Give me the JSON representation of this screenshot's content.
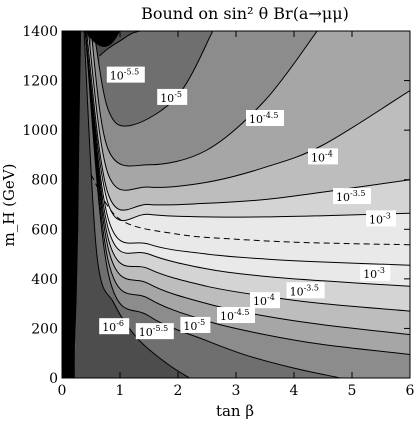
{
  "chart_data": {
    "type": "contour",
    "title": "Bound on sin² θ Br(a→μμ)",
    "xlabel": "tan β",
    "ylabel": "m_H (GeV)",
    "xlim": [
      0,
      6
    ],
    "ylim": [
      0,
      1400
    ],
    "x_ticks": [
      "0",
      "1",
      "2",
      "3",
      "4",
      "5",
      "6"
    ],
    "y_ticks": [
      "0",
      "200",
      "400",
      "600",
      "800",
      "1000",
      "1200",
      "1400"
    ],
    "excluded_region": "black",
    "dashed_line": {
      "description": "",
      "x": [
        0.5,
        1,
        2,
        3,
        4,
        5,
        6
      ],
      "y": [
        820,
        640,
        580,
        560,
        548,
        542,
        538
      ]
    },
    "upper_contours": [
      {
        "label": "10",
        "exp": "-5.5",
        "x": [
          0.65,
          0.8,
          1.0,
          1.2,
          1.35
        ],
        "y": [
          1300,
          1330,
          1360,
          1390,
          1400
        ]
      },
      {
        "label": "10",
        "exp": "-5",
        "x": [
          0.55,
          0.8,
          1.2,
          2.0,
          2.6
        ],
        "y": [
          1400,
          1080,
          1020,
          1140,
          1400
        ]
      },
      {
        "label": "10",
        "exp": "-4.5",
        "x": [
          0.5,
          0.8,
          1.5,
          2.5,
          3.5,
          4.4
        ],
        "y": [
          1400,
          920,
          860,
          920,
          1120,
          1400
        ]
      },
      {
        "label": "10",
        "exp": "-4",
        "x": [
          0.45,
          0.8,
          1.5,
          2.5,
          3.5,
          4.5,
          6.0
        ],
        "y": [
          1400,
          820,
          770,
          790,
          850,
          940,
          1160
        ]
      },
      {
        "label": "10",
        "exp": "-3.5",
        "x": [
          0.42,
          0.8,
          1.5,
          2.5,
          3.5,
          4.5,
          6.0
        ],
        "y": [
          1400,
          740,
          700,
          705,
          720,
          750,
          800
        ]
      },
      {
        "label": "10",
        "exp": "-3",
        "x": [
          0.4,
          0.8,
          1.5,
          2.5,
          3.5,
          4.5,
          6.0
        ],
        "y": [
          1400,
          700,
          660,
          650,
          650,
          655,
          665
        ]
      }
    ],
    "lower_contours": [
      {
        "label": "10",
        "exp": "-3",
        "x": [
          0.4,
          0.8,
          1.5,
          2.5,
          3.5,
          4.5,
          6.0
        ],
        "y": [
          1400,
          640,
          540,
          500,
          480,
          468,
          455
        ]
      },
      {
        "label": "10",
        "exp": "-3.5",
        "x": [
          0.4,
          0.8,
          1.5,
          2.5,
          3.5,
          4.5,
          6.0
        ],
        "y": [
          1400,
          600,
          500,
          440,
          410,
          392,
          370
        ]
      },
      {
        "label": "10",
        "exp": "-4",
        "x": [
          0.4,
          0.8,
          1.5,
          2.5,
          3.5,
          4.5,
          6.0
        ],
        "y": [
          1400,
          560,
          440,
          370,
          330,
          300,
          270
        ]
      },
      {
        "label": "10",
        "exp": "-4.5",
        "x": [
          0.4,
          0.8,
          1.5,
          2.5,
          3.5,
          4.5,
          6.0
        ],
        "y": [
          1400,
          520,
          380,
          300,
          250,
          215,
          175
        ]
      },
      {
        "label": "10",
        "exp": "-5",
        "x": [
          0.4,
          0.8,
          1.5,
          2.5,
          3.5,
          4.5,
          6.0
        ],
        "y": [
          1400,
          470,
          320,
          230,
          175,
          135,
          95
        ]
      },
      {
        "label": "10",
        "exp": "-5.5",
        "x": [
          0.4,
          0.8,
          1.5,
          2.5,
          3.2,
          4.0,
          4.8
        ],
        "y": [
          1400,
          420,
          250,
          150,
          90,
          40,
          0
        ]
      },
      {
        "label": "10",
        "exp": "-6",
        "x": [
          0.38,
          0.6,
          0.9,
          1.3,
          1.8,
          2.2
        ],
        "y": [
          1400,
          500,
          300,
          160,
          60,
          0
        ]
      }
    ],
    "label_positions_note": "",
    "contour_labels": [
      {
        "label": "10",
        "exp": "-5.5",
        "x": 1.1,
        "y": 1220
      },
      {
        "label": "10",
        "exp": "-5",
        "x": 1.9,
        "y": 1130
      },
      {
        "label": "10",
        "exp": "-4.5",
        "x": 3.5,
        "y": 1045
      },
      {
        "label": "10",
        "exp": "-4",
        "x": 4.5,
        "y": 890
      },
      {
        "label": "10",
        "exp": "-3.5",
        "x": 5.0,
        "y": 730
      },
      {
        "label": "10",
        "exp": "-3",
        "x": 5.5,
        "y": 640
      },
      {
        "label": "10",
        "exp": "-3",
        "x": 5.4,
        "y": 420
      },
      {
        "label": "10",
        "exp": "-3.5",
        "x": 4.2,
        "y": 350
      },
      {
        "label": "10",
        "exp": "-4",
        "x": 3.5,
        "y": 310
      },
      {
        "label": "10",
        "exp": "-4.5",
        "x": 3.0,
        "y": 250
      },
      {
        "label": "10",
        "exp": "-5",
        "x": 2.3,
        "y": 210
      },
      {
        "label": "10",
        "exp": "-5.5",
        "x": 1.6,
        "y": 185
      },
      {
        "label": "10",
        "exp": "-6",
        "x": 0.9,
        "y": 205
      }
    ],
    "region_fills": [
      "#4d4d4d",
      "#6f6f6f",
      "#8c8c8c",
      "#a6a6a6",
      "#bdbdbd",
      "#d4d4d4",
      "#e9e9e9",
      "#ffffff"
    ]
  }
}
